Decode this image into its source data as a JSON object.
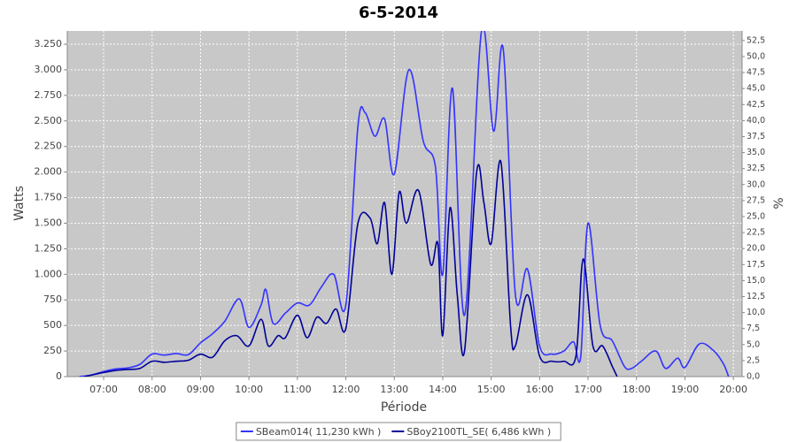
{
  "chart_data": {
    "type": "line",
    "title": "6-5-2014",
    "xlabel": "Période",
    "ylabel": "Watts",
    "y2label": "%",
    "xlim": [
      6.25,
      20.18
    ],
    "xticks": [
      {
        "value": 7,
        "label": "07:00"
      },
      {
        "value": 8,
        "label": "08:00"
      },
      {
        "value": 9,
        "label": "09:00"
      },
      {
        "value": 10,
        "label": "10:00"
      },
      {
        "value": 11,
        "label": "11:00"
      },
      {
        "value": 12,
        "label": "12:00"
      },
      {
        "value": 13,
        "label": "13:00"
      },
      {
        "value": 14,
        "label": "14:00"
      },
      {
        "value": 15,
        "label": "15:00"
      },
      {
        "value": 16,
        "label": "16:00"
      },
      {
        "value": 17,
        "label": "17:00"
      },
      {
        "value": 18,
        "label": "18:00"
      },
      {
        "value": 19,
        "label": "19:00"
      },
      {
        "value": 20,
        "label": "20:00"
      }
    ],
    "ylim": [
      0,
      3380
    ],
    "yticks": [
      0,
      250,
      500,
      750,
      {
        "value": 1000,
        "label": "1.000"
      },
      {
        "value": 1250,
        "label": "1.250"
      },
      {
        "value": 1500,
        "label": "1.500"
      },
      {
        "value": 1750,
        "label": "1.750"
      },
      {
        "value": 2000,
        "label": "2.000"
      },
      {
        "value": 2250,
        "label": "2.250"
      },
      {
        "value": 2500,
        "label": "2.500"
      },
      {
        "value": 2750,
        "label": "2.750"
      },
      {
        "value": 3000,
        "label": "3.000"
      },
      {
        "value": 3250,
        "label": "3.250"
      }
    ],
    "y2lim": [
      0,
      54
    ],
    "y2ticks": [
      {
        "value": 0,
        "label": "0,0"
      },
      {
        "value": 2.5,
        "label": "2,5"
      },
      {
        "value": 5,
        "label": "5,0"
      },
      {
        "value": 7.5,
        "label": "7,5"
      },
      {
        "value": 10,
        "label": "10,0"
      },
      {
        "value": 12.5,
        "label": "12,5"
      },
      {
        "value": 15,
        "label": "15,0"
      },
      {
        "value": 17.5,
        "label": "17,5"
      },
      {
        "value": 20,
        "label": "20,0"
      },
      {
        "value": 22.5,
        "label": "22,5"
      },
      {
        "value": 25,
        "label": "25,0"
      },
      {
        "value": 27.5,
        "label": "27,5"
      },
      {
        "value": 30,
        "label": "30,0"
      },
      {
        "value": 32.5,
        "label": "32,5"
      },
      {
        "value": 35,
        "label": "35,0"
      },
      {
        "value": 37.5,
        "label": "37,5"
      },
      {
        "value": 40,
        "label": "40,0"
      },
      {
        "value": 42.5,
        "label": "42,5"
      },
      {
        "value": 45,
        "label": "45,0"
      },
      {
        "value": 47.5,
        "label": "47,5"
      },
      {
        "value": 50,
        "label": "50,0"
      },
      {
        "value": 52.5,
        "label": "52,5"
      }
    ],
    "grid": true,
    "legend": "bottom",
    "series": [
      {
        "name": "SBeam014( 11,230 kWh )",
        "color": "#3333ff",
        "x": [
          6.5,
          6.75,
          7.0,
          7.25,
          7.5,
          7.75,
          8.0,
          8.25,
          8.5,
          8.75,
          9.0,
          9.25,
          9.5,
          9.8,
          10.0,
          10.25,
          10.35,
          10.5,
          10.75,
          11.0,
          11.25,
          11.5,
          11.75,
          12.0,
          12.25,
          12.4,
          12.6,
          12.8,
          13.0,
          13.3,
          13.6,
          13.85,
          14.0,
          14.2,
          14.45,
          14.8,
          15.05,
          15.25,
          15.5,
          15.75,
          16.0,
          16.25,
          16.5,
          16.7,
          16.85,
          17.0,
          17.25,
          17.5,
          17.75,
          17.9,
          18.1,
          18.4,
          18.6,
          18.85,
          19.0,
          19.3,
          19.6,
          19.8,
          19.9
        ],
        "values": [
          0,
          15,
          50,
          75,
          85,
          120,
          220,
          210,
          225,
          215,
          330,
          420,
          540,
          760,
          480,
          700,
          850,
          520,
          620,
          720,
          700,
          880,
          1000,
          700,
          2450,
          2580,
          2350,
          2520,
          1980,
          3000,
          2300,
          2050,
          1000,
          2820,
          600,
          3380,
          2400,
          3200,
          800,
          1050,
          300,
          220,
          250,
          340,
          200,
          1500,
          500,
          350,
          100,
          80,
          150,
          250,
          80,
          180,
          90,
          320,
          250,
          120,
          0
        ]
      },
      {
        "name": "SBoy2100TL_SE( 6,486 kWh )",
        "color": "#000099",
        "x": [
          6.6,
          7.0,
          7.25,
          7.5,
          7.75,
          8.0,
          8.25,
          8.5,
          8.75,
          9.0,
          9.25,
          9.5,
          9.75,
          10.0,
          10.25,
          10.4,
          10.6,
          10.75,
          11.0,
          11.2,
          11.4,
          11.6,
          11.8,
          12.0,
          12.25,
          12.5,
          12.65,
          12.8,
          12.95,
          13.1,
          13.25,
          13.5,
          13.75,
          13.9,
          14.0,
          14.15,
          14.3,
          14.45,
          14.7,
          14.85,
          15.0,
          15.2,
          15.4,
          15.5,
          15.75,
          16.0,
          16.25,
          16.5,
          16.75,
          16.9,
          17.1,
          17.3,
          17.5,
          17.6
        ],
        "values": [
          0,
          40,
          60,
          70,
          80,
          150,
          140,
          150,
          160,
          220,
          190,
          350,
          400,
          300,
          560,
          300,
          400,
          380,
          600,
          380,
          580,
          520,
          660,
          470,
          1500,
          1550,
          1300,
          1700,
          1000,
          1800,
          1500,
          1820,
          1100,
          1300,
          400,
          1650,
          800,
          250,
          2000,
          1700,
          1300,
          2100,
          500,
          300,
          800,
          200,
          150,
          150,
          200,
          1150,
          300,
          300,
          100,
          0
        ]
      }
    ]
  }
}
